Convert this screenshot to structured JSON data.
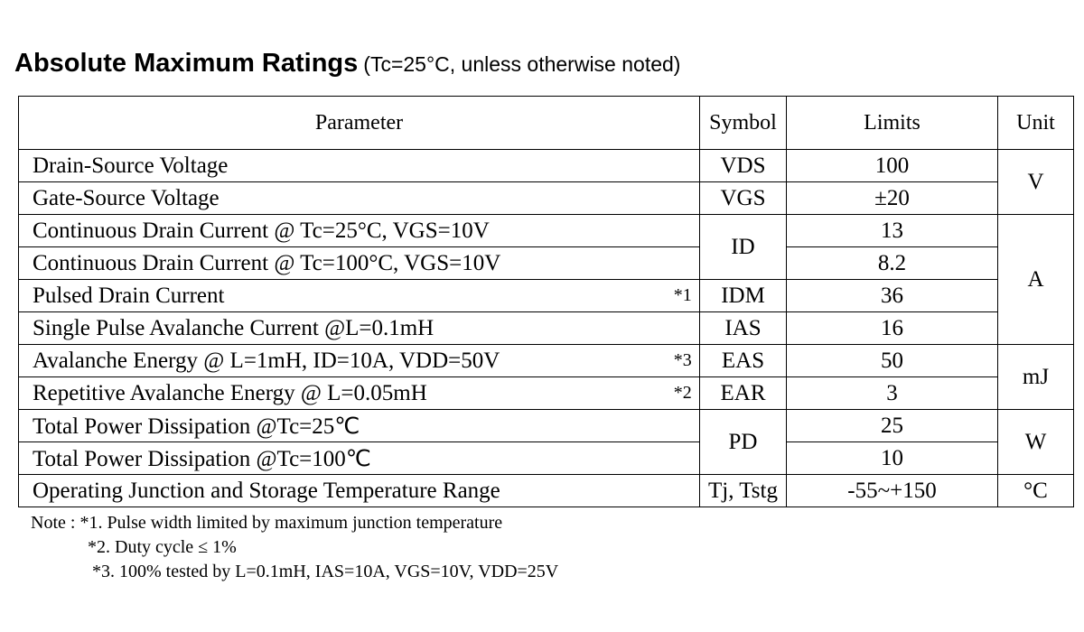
{
  "title": "Absolute Maximum Ratings",
  "subtitle": "(Tc=25°C, unless otherwise noted)",
  "headers": {
    "parameter": "Parameter",
    "symbol": "Symbol",
    "limits": "Limits",
    "unit": "Unit"
  },
  "rows": [
    {
      "parameter": "Drain-Source Voltage",
      "note": "",
      "limit": "100"
    },
    {
      "parameter": "Gate-Source Voltage",
      "note": "",
      "limit": "±20"
    },
    {
      "parameter": "Continuous Drain Current @ Tc=25°C, VGS=10V",
      "note": "",
      "limit": "13"
    },
    {
      "parameter": "Continuous Drain Current @ Tc=100°C, VGS=10V",
      "note": "",
      "limit": "8.2"
    },
    {
      "parameter": "Pulsed Drain Current",
      "note": "*1",
      "limit": "36"
    },
    {
      "parameter": "Single Pulse Avalanche Current @L=0.1mH",
      "note": "",
      "limit": "16"
    },
    {
      "parameter": "Avalanche Energy @ L=1mH, ID=10A, VDD=50V",
      "note": "*3",
      "limit": "50"
    },
    {
      "parameter": "Repetitive Avalanche Energy @ L=0.05mH",
      "note": "*2",
      "limit": "3"
    },
    {
      "parameter": "Total Power Dissipation @Tc=25℃",
      "note": "",
      "limit": "25"
    },
    {
      "parameter": "Total Power Dissipation @Tc=100℃",
      "note": "",
      "limit": "10"
    },
    {
      "parameter": "Operating Junction and Storage Temperature Range",
      "note": "",
      "limit": "-55~+150"
    }
  ],
  "symbols": {
    "vds": "VDS",
    "vgs": "VGS",
    "id": "ID",
    "idm": "IDM",
    "ias": "IAS",
    "eas": "EAS",
    "ear": "EAR",
    "pd": "PD",
    "tj": "Tj, Tstg"
  },
  "units": {
    "v": "V",
    "a": "A",
    "mj": "mJ",
    "w": "W",
    "degc": "°C"
  },
  "notes": {
    "prefix": "Note :",
    "n1": "*1. Pulse width limited by maximum junction temperature",
    "n2": "*2. Duty cycle ≤ 1%",
    "n3": "*3. 100% tested by L=0.1mH, IAS=10A, VGS=10V, VDD=25V"
  }
}
